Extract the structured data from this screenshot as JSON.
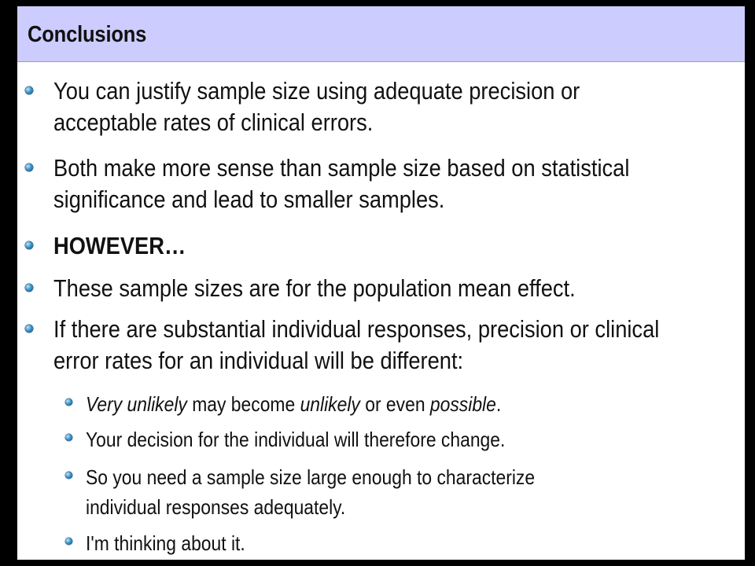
{
  "slide": {
    "title": "Conclusions",
    "bullets": {
      "b1": {
        "line1": "You can justify sample size using adequate precision or",
        "line2": "acceptable rates of clinical errors."
      },
      "b2": {
        "line1": "Both make more sense than sample size based on statistical",
        "line2": "significance and lead to smaller samples."
      },
      "b3": {
        "text": "HOWEVER…"
      },
      "b4": {
        "text": "These sample sizes are for the population mean effect."
      },
      "b5": {
        "line1": "If there are substantial individual responses, precision or clinical",
        "line2": "error rates for an individual will be different:"
      },
      "s1": {
        "p1": "Very unlikely",
        "p2": " may become ",
        "p3": "unlikely",
        "p4": " or even ",
        "p5": "possible",
        "p6": "."
      },
      "s2": {
        "text": "Your decision for the individual will therefore change."
      },
      "s3": {
        "line1": "So you need a sample size large enough to characterize",
        "line2": "individual responses adequately."
      },
      "s4": {
        "text": "I'm thinking about it."
      }
    }
  },
  "colors": {
    "title_bar": "#ccccff",
    "background": "#000000",
    "slide": "#ffffff",
    "bullet": "#3a93c9"
  },
  "icons": {
    "bullet": "bullet-dot-icon"
  }
}
